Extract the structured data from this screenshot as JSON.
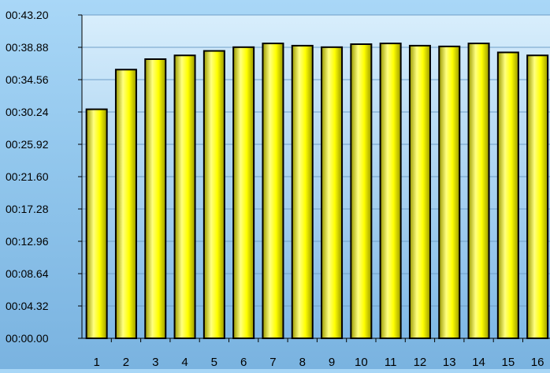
{
  "chart_data": {
    "type": "bar",
    "title": "",
    "xlabel": "",
    "ylabel": "",
    "y_unit": "seconds",
    "ylim": [
      0,
      43.2
    ],
    "y_ticks": [
      "00:00.00",
      "00:04.32",
      "00:08.64",
      "00:12.96",
      "00:17.28",
      "00:21.60",
      "00:25.92",
      "00:30.24",
      "00:34.56",
      "00:38.88",
      "00:43.20"
    ],
    "y_tick_values": [
      0,
      4.32,
      8.64,
      12.96,
      17.28,
      21.6,
      25.92,
      30.24,
      34.56,
      38.88,
      43.2
    ],
    "categories": [
      "1",
      "2",
      "3",
      "4",
      "5",
      "6",
      "7",
      "8",
      "9",
      "10",
      "11",
      "12",
      "13",
      "14",
      "15",
      "16"
    ],
    "values": [
      30.6,
      35.9,
      37.3,
      37.8,
      38.4,
      38.9,
      39.4,
      39.1,
      38.9,
      39.3,
      39.4,
      39.1,
      39.0,
      39.4,
      38.2,
      37.8
    ],
    "grid": true,
    "colors": {
      "bar_fill_light": "#ffff80",
      "bar_fill": "#ffff00",
      "bar_fill_dark": "#9a9a00",
      "bar_stroke": "#000000",
      "plot_background_top": "#d8eefc",
      "plot_background_bottom": "#7fb8e6",
      "gridline": "#6f9fc8",
      "axis": "#000000",
      "tick_text": "#000000"
    }
  }
}
